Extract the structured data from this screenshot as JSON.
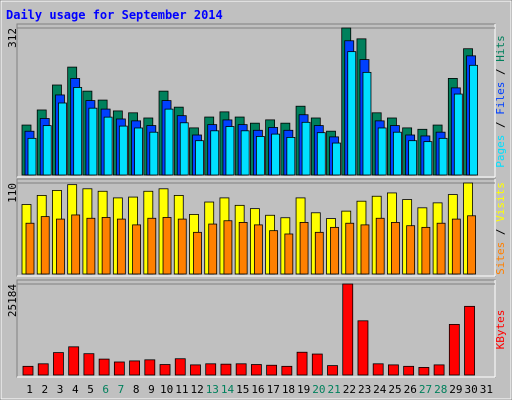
{
  "chart_data": [
    {
      "type": "bar",
      "title": "Daily usage for September 2014",
      "categories": [
        "1",
        "2",
        "3",
        "4",
        "5",
        "6",
        "7",
        "8",
        "9",
        "10",
        "11",
        "12",
        "13",
        "14",
        "15",
        "16",
        "17",
        "18",
        "19",
        "20",
        "21",
        "22",
        "23",
        "24",
        "25",
        "26",
        "27",
        "28",
        "29",
        "30",
        "31"
      ],
      "weekends": [
        "6",
        "7",
        "13",
        "14",
        "20",
        "21",
        "27",
        "28"
      ],
      "weekend_color": "#00805c",
      "label_color": "#000000",
      "ylim": [
        0,
        312
      ],
      "yticks": [
        312
      ],
      "series": [
        {
          "name": "Hits",
          "color": "#00805c",
          "values": [
            106,
            138,
            191,
            229,
            178,
            159,
            136,
            132,
            121,
            178,
            144,
            100,
            123,
            134,
            123,
            110,
            117,
            110,
            146,
            121,
            93,
            312,
            289,
            132,
            121,
            100,
            97,
            106,
            205,
            268,
            null
          ]
        },
        {
          "name": "Files",
          "color": "#0040ff",
          "values": [
            98,
            125,
            175,
            210,
            163,
            145,
            124,
            120,
            110,
            163,
            131,
            90,
            112,
            122,
            112,
            100,
            106,
            100,
            133,
            110,
            86,
            290,
            250,
            120,
            110,
            90,
            88,
            96,
            190,
            258,
            null
          ]
        },
        {
          "name": "Pages",
          "color": "#00e0ff",
          "values": [
            88,
            115,
            163,
            196,
            152,
            133,
            114,
            110,
            101,
            150,
            121,
            83,
            104,
            113,
            104,
            92,
            97,
            90,
            122,
            100,
            78,
            272,
            228,
            110,
            101,
            83,
            81,
            88,
            182,
            243,
            null
          ]
        }
      ]
    },
    {
      "type": "bar",
      "ylim": [
        0,
        110
      ],
      "yticks": [
        110
      ],
      "series": [
        {
          "name": "Visits",
          "color": "#ffff00",
          "values": [
            84,
            95,
            101,
            108,
            103,
            100,
            92,
            93,
            100,
            103,
            95,
            72,
            87,
            92,
            83,
            79,
            71,
            68,
            92,
            74,
            67,
            76,
            88,
            94,
            98,
            90,
            80,
            86,
            96,
            110,
            null
          ]
        },
        {
          "name": "Sites",
          "color": "#ff8000",
          "values": [
            65,
            73,
            70,
            75,
            71,
            72,
            70,
            63,
            71,
            72,
            70,
            54,
            64,
            68,
            66,
            63,
            56,
            52,
            66,
            54,
            60,
            65,
            63,
            71,
            66,
            62,
            60,
            65,
            70,
            74,
            null
          ]
        }
      ]
    },
    {
      "type": "bar",
      "ylim": [
        0,
        25184
      ],
      "yticks": [
        25184
      ],
      "series": [
        {
          "name": "KBytes",
          "color": "#ff0000",
          "values": [
            2400,
            3100,
            6200,
            7800,
            5900,
            4400,
            3600,
            3900,
            4200,
            2900,
            4500,
            2800,
            3100,
            3000,
            3100,
            2900,
            2700,
            2400,
            6300,
            5800,
            2600,
            25184,
            15000,
            3100,
            2800,
            2400,
            2100,
            2800,
            14000,
            19000,
            null
          ]
        }
      ]
    }
  ]
}
